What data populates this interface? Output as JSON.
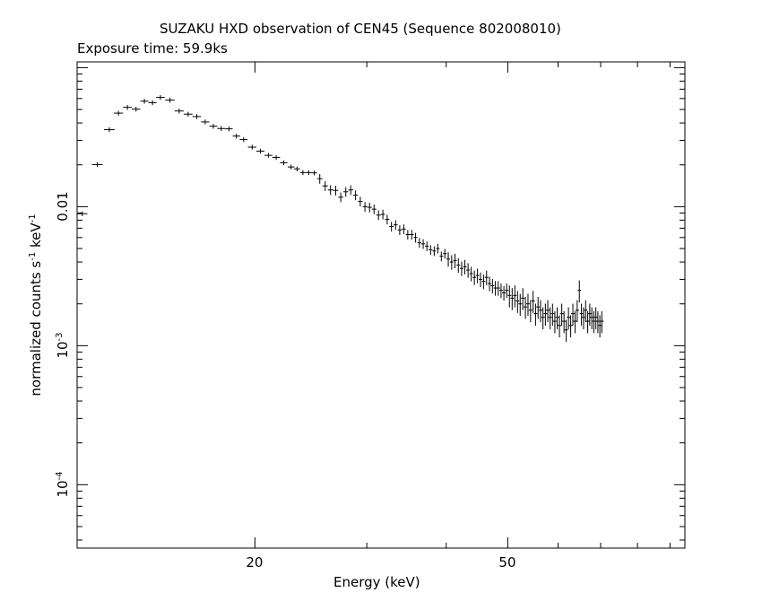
{
  "chart_data": {
    "type": "scatter",
    "title": "SUZAKU HXD observation of CEN45 (Sequence 802008010)",
    "subtitle": "Exposure time: 59.9ks",
    "xlabel": "Energy (keV)",
    "ylabel": {
      "text": "normalized counts s",
      "sup1": "-1",
      "mid": " keV",
      "sup2": "-1"
    },
    "xscale": "log",
    "yscale": "log",
    "xlim": [
      10.5,
      95
    ],
    "ylim": [
      3.5e-05,
      0.11
    ],
    "xticks_labeled": [
      {
        "value": 20,
        "label": "20"
      },
      {
        "value": 50,
        "label": "50"
      }
    ],
    "yticks_labeled": [
      {
        "value": 0.01,
        "label": "0.01"
      },
      {
        "value": 0.001,
        "label": "10",
        "sup": "-3"
      },
      {
        "value": 0.0001,
        "label": "10",
        "sup": "-4"
      }
    ],
    "x": [
      10.7,
      11.3,
      11.8,
      12.2,
      12.6,
      13.0,
      13.4,
      13.8,
      14.2,
      14.7,
      15.2,
      15.7,
      16.2,
      16.7,
      17.2,
      17.7,
      18.2,
      18.7,
      19.2,
      19.8,
      20.4,
      21.0,
      21.6,
      22.2,
      22.8,
      23.3,
      23.8,
      24.3,
      24.8,
      25.3,
      25.8,
      26.3,
      26.8,
      27.3,
      27.8,
      28.3,
      28.8,
      29.3,
      29.8,
      30.3,
      30.8,
      31.3,
      31.8,
      32.3,
      32.8,
      33.3,
      33.8,
      34.3,
      34.8,
      35.3,
      35.8,
      36.3,
      36.8,
      37.3,
      37.8,
      38.3,
      38.8,
      39.3,
      39.8,
      40.3,
      40.8,
      41.3,
      41.8,
      42.3,
      42.8,
      43.3,
      43.8,
      44.3,
      44.8,
      45.3,
      45.8,
      46.3,
      46.8,
      47.3,
      47.8,
      48.3,
      48.8,
      49.3,
      49.8,
      50.3,
      50.8,
      51.3,
      51.8,
      52.3,
      52.8,
      53.3,
      53.8,
      54.3,
      54.8,
      55.3,
      55.8,
      56.3,
      56.8,
      57.3,
      57.8,
      58.3,
      58.8,
      59.3,
      59.8,
      60.3,
      60.8,
      61.3,
      61.8,
      62.3,
      62.8,
      63.3,
      63.8,
      64.3,
      64.8,
      65.3,
      65.8,
      66.3,
      66.8,
      67.3,
      67.8,
      68.3,
      68.8,
      69.3,
      69.8,
      70.3
    ],
    "values": [
      0.0089,
      0.0201,
      0.0358,
      0.0471,
      0.0518,
      0.0503,
      0.0574,
      0.056,
      0.0611,
      0.0584,
      0.0488,
      0.0463,
      0.0445,
      0.0407,
      0.0379,
      0.0365,
      0.0363,
      0.0322,
      0.0304,
      0.0268,
      0.0251,
      0.0234,
      0.0226,
      0.0207,
      0.0193,
      0.0187,
      0.0176,
      0.0176,
      0.0175,
      0.0159,
      0.0141,
      0.0132,
      0.0131,
      0.0117,
      0.0128,
      0.0132,
      0.0121,
      0.0109,
      0.01,
      0.0099,
      0.0096,
      0.0087,
      0.0088,
      0.0081,
      0.0072,
      0.0074,
      0.0068,
      0.0069,
      0.0063,
      0.0063,
      0.006,
      0.0055,
      0.0054,
      0.0052,
      0.0049,
      0.0048,
      0.005,
      0.0044,
      0.0046,
      0.0042,
      0.004,
      0.0041,
      0.0038,
      0.0036,
      0.0037,
      0.0035,
      0.0033,
      0.0031,
      0.0032,
      0.003,
      0.0029,
      0.0031,
      0.0028,
      0.0027,
      0.0026,
      0.0026,
      0.0025,
      0.0024,
      0.0025,
      0.0023,
      0.0022,
      0.0023,
      0.0021,
      0.002,
      0.0022,
      0.0019,
      0.002,
      0.0018,
      0.0021,
      0.0017,
      0.0019,
      0.0018,
      0.0016,
      0.0017,
      0.0018,
      0.0016,
      0.0017,
      0.0015,
      0.0016,
      0.0014,
      0.0017,
      0.0015,
      0.0013,
      0.0016,
      0.0014,
      0.0017,
      0.0015,
      0.0018,
      0.0025,
      0.0017,
      0.0016,
      0.0018,
      0.0015,
      0.0017,
      0.0016,
      0.0015,
      0.0016,
      0.0015,
      0.0014,
      0.0015
    ],
    "grid": false,
    "legend": "none",
    "background": "#ffffff",
    "ink": "#000000"
  }
}
